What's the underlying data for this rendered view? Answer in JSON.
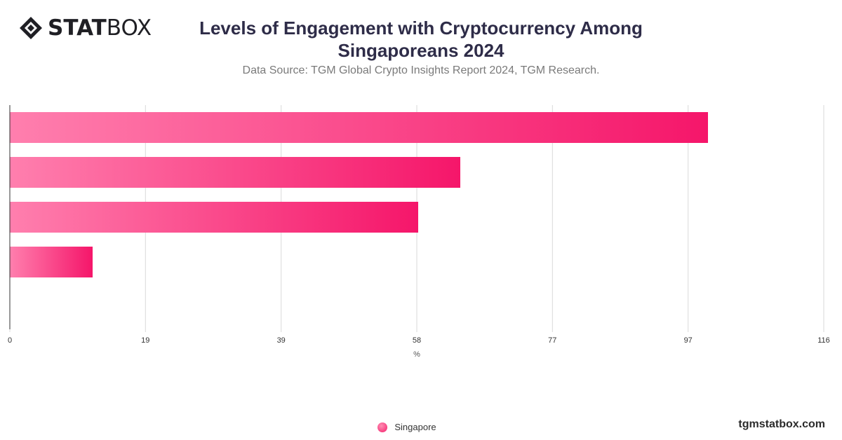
{
  "brand": {
    "logo_bold": "STAT",
    "logo_light": "BOX",
    "website": "tgmstatbox.com"
  },
  "header": {
    "title": "Levels of Engagement with Cryptocurrency Among Singaporeans 2024",
    "subtitle": "Data Source: TGM Global Crypto Insights Report 2024, TGM Research."
  },
  "legend": {
    "items": [
      "Singapore"
    ]
  },
  "colors": {
    "bar_start": "#ff7fae",
    "bar_end": "#f5166a",
    "grid": "#d9d9d9",
    "axis": "#333333"
  },
  "chart_data": {
    "type": "bar",
    "orientation": "horizontal",
    "categories": [
      "",
      "",
      "",
      ""
    ],
    "series": [
      {
        "name": "Singapore",
        "values": [
          99.5,
          64.2,
          58.2,
          11.8
        ]
      }
    ],
    "xlabel": "%",
    "ylabel": "",
    "xlim": [
      0,
      116
    ],
    "x_ticks": [
      "0",
      "19",
      "39",
      "58",
      "77",
      "97",
      "116"
    ],
    "x_tick_values": [
      0,
      19.33,
      38.67,
      58,
      77.33,
      96.67,
      116
    ],
    "grid": true,
    "legend_position": "bottom"
  }
}
